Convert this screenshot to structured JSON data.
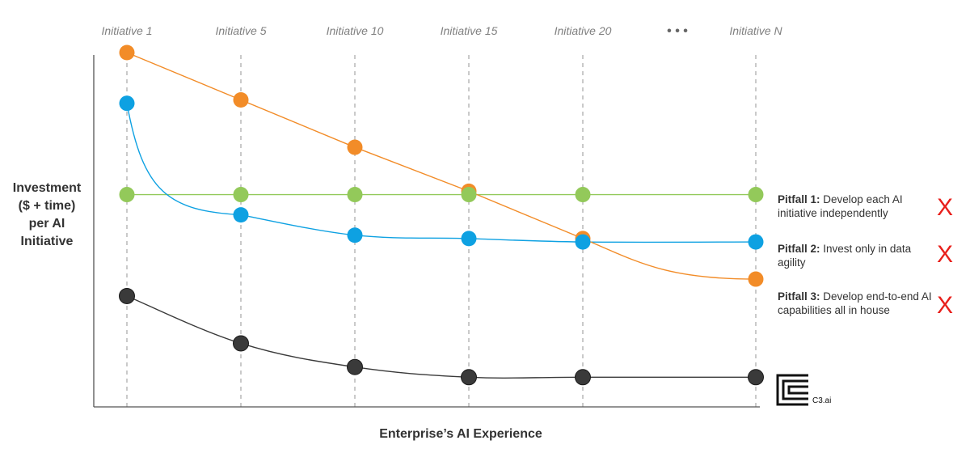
{
  "chart_data": {
    "type": "line",
    "title": "",
    "xlabel": "Enterprise’s AI Experience",
    "ylabel": "Investment ($ + time) per AI Initiative",
    "categories": [
      "Initiative 1",
      "Initiative 5",
      "Initiative 10",
      "Initiative 15",
      "Initiative 20",
      "• • •",
      "Initiative N"
    ],
    "ylim": [
      0,
      100
    ],
    "grid": "vertical-dashed",
    "series": [
      {
        "key": "pitfall1",
        "color": "#93c95a",
        "values": [
          58,
          58,
          58,
          58,
          58,
          null,
          58
        ]
      },
      {
        "key": "pitfall2",
        "color": "#0ea1e2",
        "values": [
          85,
          52,
          46,
          45,
          44,
          null,
          44
        ]
      },
      {
        "key": "pitfall3",
        "color": "#f28c28",
        "values": [
          100,
          86,
          72,
          59,
          45,
          null,
          33
        ]
      },
      {
        "key": "c3ai",
        "color": "#3a3a3a",
        "values": [
          28,
          14,
          7,
          4,
          4,
          null,
          4
        ]
      }
    ]
  },
  "ylabel_lines": [
    "Investment",
    "($ + time)",
    "per AI",
    "Initiative"
  ],
  "pitfalls": [
    {
      "title": "Pitfall 1:",
      "text": "Develop each AI initiative independently",
      "mark": "X"
    },
    {
      "title": "Pitfall 2:",
      "text": "Invest only in data agility",
      "mark": "X"
    },
    {
      "title": "Pitfall 3:",
      "text": "Develop end-to-end AI capabilities all in house",
      "mark": "X"
    }
  ],
  "logo": {
    "text": "C3.ai"
  }
}
